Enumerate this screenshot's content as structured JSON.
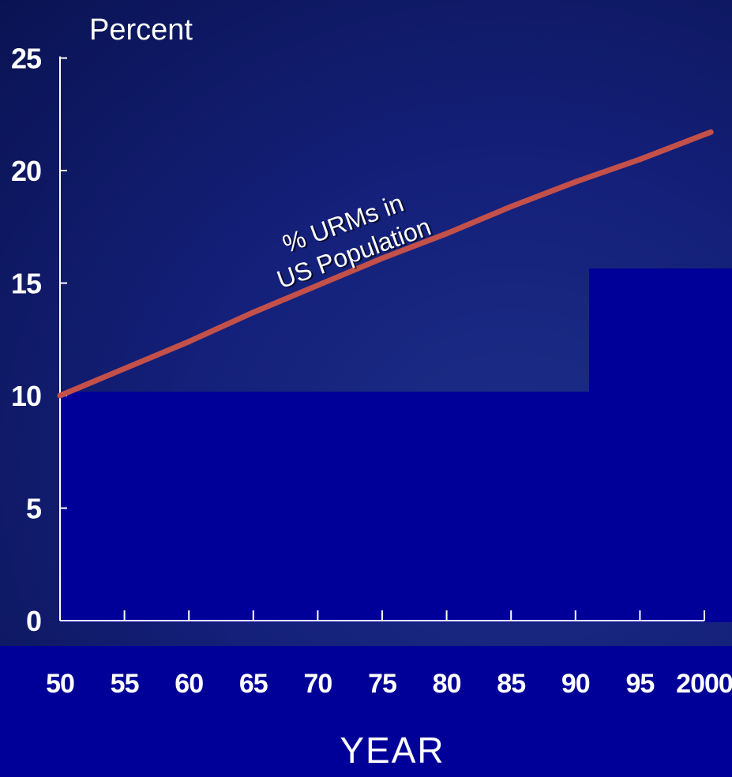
{
  "chart_data": {
    "type": "line",
    "ylabel": "Percent",
    "xlabel": "YEAR",
    "x": [
      50,
      55,
      60,
      65,
      70,
      75,
      80,
      85,
      90,
      95,
      2000
    ],
    "x_tick_labels": [
      "50",
      "55",
      "60",
      "65",
      "70",
      "75",
      "80",
      "85",
      "90",
      "95",
      "2000"
    ],
    "y_ticks": [
      0,
      5,
      10,
      15,
      20,
      25
    ],
    "y_tick_labels": [
      "0",
      "5",
      "10",
      "15",
      "20",
      "25"
    ],
    "ylim": [
      0,
      25
    ],
    "grid": false,
    "series": [
      {
        "name": "% URMs in US Population",
        "color": "#c4504a",
        "values": [
          10.0,
          11.2,
          12.4,
          13.7,
          14.9,
          16.1,
          17.2,
          18.4,
          19.5,
          20.5,
          21.6
        ]
      }
    ],
    "annotation": [
      "% URMs in",
      "US Population"
    ]
  },
  "colors": {
    "background": "#14207a",
    "panel": "#000099",
    "line": "#c4504a",
    "axis": "#ffffff",
    "text": "#ffffff"
  }
}
